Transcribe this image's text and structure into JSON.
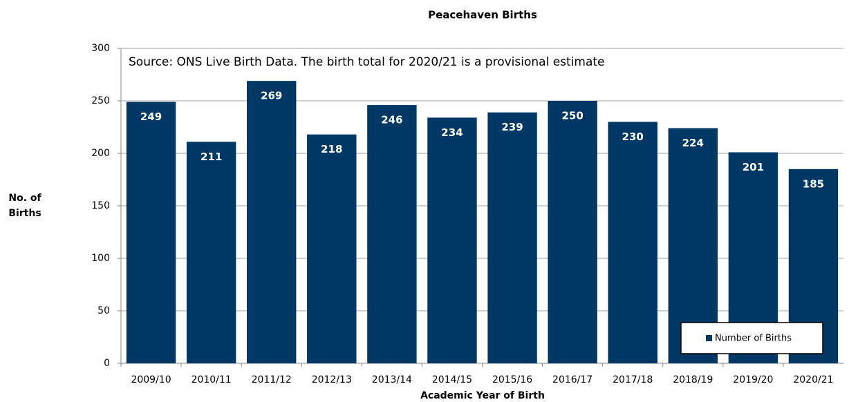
{
  "chart_data": {
    "type": "bar",
    "title": "Peacehaven Births",
    "annotation": "Source: ONS Live Birth Data.  The birth total for 2020/21 is a provisional estimate",
    "x_label": "Academic Year of Birth",
    "y_label": [
      "No. of",
      "Births"
    ],
    "categories": [
      "2009/10",
      "2010/11",
      "2011/12",
      "2012/13",
      "2013/14",
      "2014/15",
      "2015/16",
      "2016/17",
      "2017/18",
      "2018/19",
      "2019/20",
      "2020/21"
    ],
    "series": [
      {
        "name": "Number of Births",
        "color": "#003865",
        "values": [
          249,
          211,
          269,
          218,
          246,
          234,
          239,
          250,
          230,
          224,
          201,
          185
        ]
      }
    ],
    "ylim": [
      0,
      300
    ],
    "yticks": [
      0,
      50,
      100,
      150,
      200,
      250,
      300
    ],
    "grid": true,
    "legend": "lower right"
  }
}
